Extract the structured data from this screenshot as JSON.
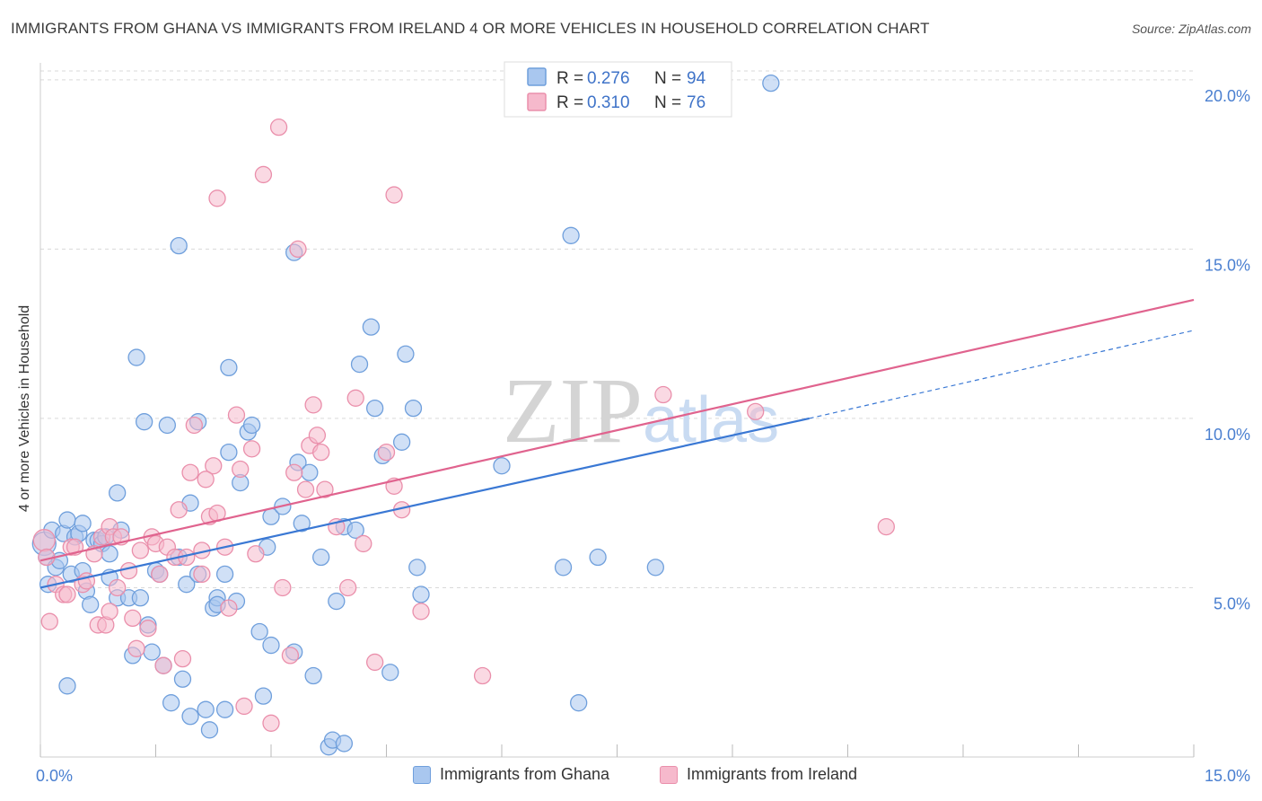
{
  "title": "IMMIGRANTS FROM GHANA VS IMMIGRANTS FROM IRELAND 4 OR MORE VEHICLES IN HOUSEHOLD CORRELATION CHART",
  "source": "Source: ZipAtlas.com",
  "watermark": {
    "zip": "ZIP",
    "atlas": "atlas"
  },
  "colors": {
    "ghana_fill": "#a9c7ef",
    "ghana_stroke": "#6f9fdc",
    "ghana_line": "#3a78d4",
    "ireland_fill": "#f6b9cc",
    "ireland_stroke": "#ea8fab",
    "ireland_line": "#e0638e",
    "tick_text": "#4a7fd0",
    "grid": "#d9d9d9"
  },
  "legend": {
    "rows": [
      {
        "r_label": "R = ",
        "r_value": "0.276",
        "n_label": "N = ",
        "n_value": "94"
      },
      {
        "r_label": "R = ",
        "r_value": "0.310",
        "n_label": "N = ",
        "n_value": "76"
      }
    ]
  },
  "bottom_legend": [
    {
      "label": "Immigrants from Ghana"
    },
    {
      "label": "Immigrants from Ireland"
    }
  ],
  "chart_data": {
    "type": "scatter",
    "title": "IMMIGRANTS FROM GHANA VS IMMIGRANTS FROM IRELAND 4 OR MORE VEHICLES IN HOUSEHOLD CORRELATION CHART",
    "xlabel": "",
    "ylabel": "4 or more Vehicles in Household",
    "xlim": [
      0,
      15
    ],
    "ylim": [
      0,
      20.5
    ],
    "x_tick_labels": [
      {
        "value": 0,
        "label": "0.0%"
      },
      {
        "value": 15,
        "label": "15.0%"
      }
    ],
    "y_tick_labels": [
      {
        "value": 5,
        "label": "5.0%"
      },
      {
        "value": 10,
        "label": "10.0%"
      },
      {
        "value": 15,
        "label": "15.0%"
      },
      {
        "value": 20,
        "label": "20.0%"
      }
    ],
    "grid": true,
    "legend_position": "top-center",
    "series": [
      {
        "name": "Immigrants from Ghana",
        "trend": {
          "x0": 0.0,
          "y0": 5.0,
          "x1": 10.0,
          "y1": 10.0,
          "dash_x1": 15.0,
          "dash_y1": 12.6
        },
        "points": [
          [
            0.05,
            6.3
          ],
          [
            0.08,
            5.9
          ],
          [
            0.1,
            5.1
          ],
          [
            0.15,
            6.7
          ],
          [
            0.2,
            5.6
          ],
          [
            0.25,
            5.8
          ],
          [
            0.3,
            6.6
          ],
          [
            0.35,
            2.1
          ],
          [
            0.35,
            7.0
          ],
          [
            0.4,
            5.4
          ],
          [
            0.45,
            6.5
          ],
          [
            0.5,
            6.6
          ],
          [
            0.55,
            5.5
          ],
          [
            0.6,
            4.9
          ],
          [
            0.65,
            4.5
          ],
          [
            0.7,
            6.4
          ],
          [
            0.75,
            6.4
          ],
          [
            0.8,
            6.3
          ],
          [
            0.85,
            6.5
          ],
          [
            0.9,
            6.0
          ],
          [
            0.9,
            5.3
          ],
          [
            1.0,
            4.7
          ],
          [
            1.0,
            7.8
          ],
          [
            1.05,
            6.7
          ],
          [
            1.15,
            4.7
          ],
          [
            1.2,
            3.0
          ],
          [
            1.25,
            11.8
          ],
          [
            1.3,
            4.7
          ],
          [
            1.35,
            9.9
          ],
          [
            1.4,
            3.9
          ],
          [
            1.45,
            3.1
          ],
          [
            1.5,
            5.5
          ],
          [
            1.55,
            5.4
          ],
          [
            1.6,
            2.7
          ],
          [
            1.65,
            9.8
          ],
          [
            1.7,
            1.6
          ],
          [
            1.8,
            15.1
          ],
          [
            1.8,
            5.9
          ],
          [
            1.85,
            2.3
          ],
          [
            1.9,
            5.1
          ],
          [
            1.95,
            7.5
          ],
          [
            1.95,
            1.2
          ],
          [
            2.05,
            5.4
          ],
          [
            2.05,
            9.9
          ],
          [
            2.15,
            1.4
          ],
          [
            2.2,
            0.8
          ],
          [
            2.25,
            4.4
          ],
          [
            2.3,
            4.7
          ],
          [
            2.3,
            4.5
          ],
          [
            2.4,
            5.4
          ],
          [
            2.4,
            1.4
          ],
          [
            2.45,
            11.5
          ],
          [
            2.45,
            9.0
          ],
          [
            2.55,
            4.6
          ],
          [
            2.6,
            8.1
          ],
          [
            2.7,
            9.6
          ],
          [
            2.75,
            9.8
          ],
          [
            2.85,
            3.7
          ],
          [
            2.9,
            1.8
          ],
          [
            2.95,
            6.2
          ],
          [
            3.0,
            7.1
          ],
          [
            3.0,
            3.3
          ],
          [
            3.15,
            7.4
          ],
          [
            3.3,
            14.9
          ],
          [
            3.3,
            3.1
          ],
          [
            3.35,
            8.7
          ],
          [
            3.4,
            6.9
          ],
          [
            3.5,
            8.4
          ],
          [
            3.55,
            2.4
          ],
          [
            3.65,
            5.9
          ],
          [
            3.75,
            0.3
          ],
          [
            3.8,
            0.5
          ],
          [
            3.85,
            4.6
          ],
          [
            3.95,
            0.4
          ],
          [
            3.95,
            6.8
          ],
          [
            4.1,
            6.7
          ],
          [
            4.15,
            11.6
          ],
          [
            4.3,
            12.7
          ],
          [
            4.35,
            10.3
          ],
          [
            4.45,
            8.9
          ],
          [
            4.55,
            2.5
          ],
          [
            4.7,
            9.3
          ],
          [
            4.75,
            11.9
          ],
          [
            4.85,
            10.3
          ],
          [
            4.9,
            5.6
          ],
          [
            4.95,
            4.8
          ],
          [
            6.0,
            8.6
          ],
          [
            6.8,
            5.6
          ],
          [
            6.9,
            15.4
          ],
          [
            7.0,
            1.6
          ],
          [
            7.25,
            5.9
          ],
          [
            8.0,
            5.6
          ],
          [
            9.5,
            19.9
          ],
          [
            0.55,
            6.9
          ]
        ]
      },
      {
        "name": "Immigrants from Ireland",
        "trend": {
          "x0": 0.0,
          "y0": 5.8,
          "x1": 15.0,
          "y1": 13.5
        },
        "points": [
          [
            0.05,
            6.4
          ],
          [
            0.08,
            5.9
          ],
          [
            0.12,
            4.0
          ],
          [
            0.2,
            5.1
          ],
          [
            0.3,
            4.8
          ],
          [
            0.35,
            4.8
          ],
          [
            0.4,
            6.2
          ],
          [
            0.45,
            6.2
          ],
          [
            0.55,
            5.1
          ],
          [
            0.6,
            5.2
          ],
          [
            0.7,
            6.0
          ],
          [
            0.75,
            3.9
          ],
          [
            0.8,
            6.5
          ],
          [
            0.85,
            3.9
          ],
          [
            0.9,
            6.8
          ],
          [
            0.95,
            6.5
          ],
          [
            1.0,
            5.0
          ],
          [
            1.05,
            6.5
          ],
          [
            1.15,
            5.5
          ],
          [
            1.2,
            4.1
          ],
          [
            1.25,
            3.2
          ],
          [
            1.3,
            6.1
          ],
          [
            1.4,
            3.8
          ],
          [
            1.45,
            6.5
          ],
          [
            1.5,
            6.3
          ],
          [
            1.55,
            5.4
          ],
          [
            1.6,
            2.7
          ],
          [
            1.65,
            6.2
          ],
          [
            1.75,
            5.9
          ],
          [
            1.8,
            7.3
          ],
          [
            1.85,
            2.9
          ],
          [
            1.9,
            5.9
          ],
          [
            1.95,
            8.4
          ],
          [
            2.0,
            9.8
          ],
          [
            2.1,
            6.1
          ],
          [
            2.1,
            5.4
          ],
          [
            2.2,
            7.1
          ],
          [
            2.25,
            8.6
          ],
          [
            2.3,
            7.2
          ],
          [
            2.3,
            16.5
          ],
          [
            2.4,
            6.2
          ],
          [
            2.45,
            4.4
          ],
          [
            2.55,
            10.1
          ],
          [
            2.6,
            8.5
          ],
          [
            2.65,
            1.5
          ],
          [
            2.75,
            9.1
          ],
          [
            2.8,
            6.0
          ],
          [
            2.9,
            17.2
          ],
          [
            3.0,
            1.0
          ],
          [
            3.1,
            18.6
          ],
          [
            3.15,
            5.0
          ],
          [
            3.25,
            3.0
          ],
          [
            3.3,
            8.4
          ],
          [
            3.35,
            15.0
          ],
          [
            3.45,
            7.9
          ],
          [
            3.5,
            9.2
          ],
          [
            3.55,
            10.4
          ],
          [
            3.6,
            9.5
          ],
          [
            3.65,
            9.0
          ],
          [
            3.7,
            7.9
          ],
          [
            3.85,
            6.8
          ],
          [
            4.0,
            5.0
          ],
          [
            4.1,
            10.6
          ],
          [
            4.2,
            6.3
          ],
          [
            4.35,
            2.8
          ],
          [
            4.5,
            9.0
          ],
          [
            4.6,
            16.6
          ],
          [
            4.6,
            8.0
          ],
          [
            4.7,
            7.3
          ],
          [
            4.95,
            4.3
          ],
          [
            5.75,
            2.4
          ],
          [
            8.1,
            10.7
          ],
          [
            9.3,
            10.2
          ],
          [
            11.0,
            6.8
          ],
          [
            0.9,
            4.3
          ],
          [
            2.15,
            8.2
          ]
        ]
      }
    ]
  }
}
